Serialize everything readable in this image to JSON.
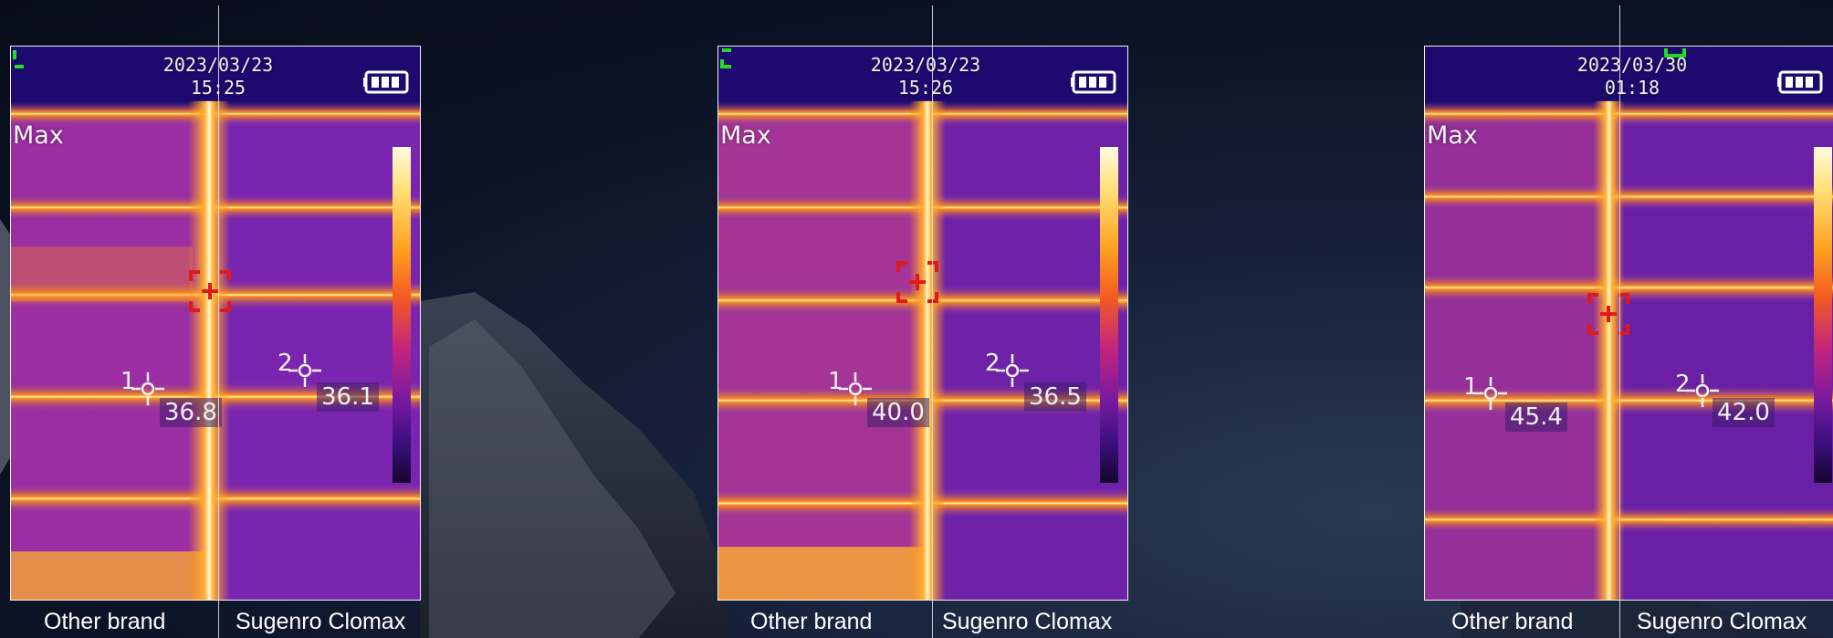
{
  "panels": [
    {
      "date": "2023/03/23",
      "time": "15:25",
      "max_label": "Max",
      "spot1": {
        "num": "1",
        "value": "36.8"
      },
      "spot2": {
        "num": "2",
        "value": "36.1"
      },
      "caption_left": "Other brand",
      "caption_right": "Sugenro Clomax"
    },
    {
      "date": "2023/03/23",
      "time": "15:26",
      "max_label": "Max",
      "spot1": {
        "num": "1",
        "value": "40.0"
      },
      "spot2": {
        "num": "2",
        "value": "36.5"
      },
      "caption_left": "Other brand",
      "caption_right": "Sugenro Clomax"
    },
    {
      "date": "2023/03/30",
      "time": "01:18",
      "max_label": "Max",
      "spot1": {
        "num": "1",
        "value": "45.4"
      },
      "spot2": {
        "num": "2",
        "value": "42.0"
      },
      "caption_left": "Other brand",
      "caption_right": "Sugenro Clomax"
    }
  ],
  "icons": {
    "battery": "battery-full-icon",
    "max_target": "red-crosshair-target-icon",
    "spot_marker": "spot-crosshair-icon",
    "corner": "green-corner-bracket-icon"
  },
  "colors": {
    "thermal_hot": "#fff8d0",
    "thermal_warm": "#ff9b1e",
    "thermal_mid": "#d8307a",
    "thermal_cool": "#7024b0",
    "thermal_cold": "#2a0a52",
    "target": "#e01a1a",
    "corner": "#22dd22"
  }
}
